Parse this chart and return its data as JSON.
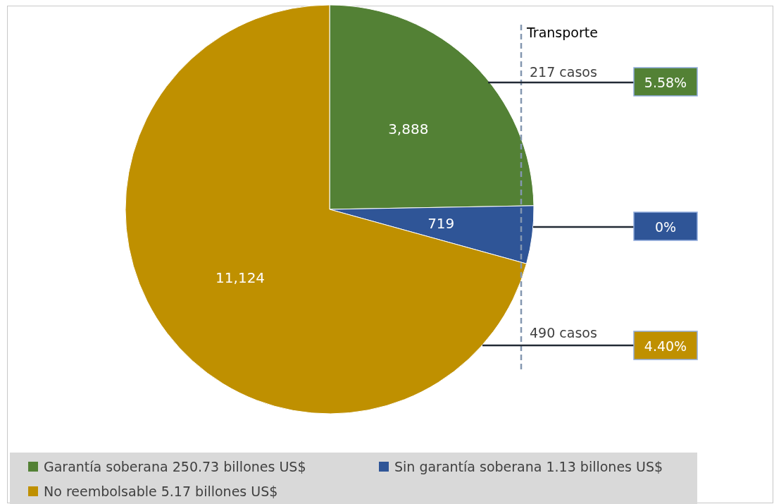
{
  "chart_data": {
    "type": "pie",
    "categories": [
      "Garantía soberana 250.73 billones US$",
      "Sin garantía soberana 1.13 billones US$",
      "No reembolsable 5.17 billones US$"
    ],
    "values": [
      3888,
      719,
      11124
    ],
    "colors": [
      "#538135",
      "#2f5597",
      "#bf9000"
    ],
    "value_labels": [
      "3,888",
      "719",
      "11,124"
    ],
    "legend": "bottom",
    "annotations": [
      "Transporte",
      "217 casos",
      "5.58%",
      "0%",
      "490 casos",
      "4.40%"
    ]
  }
}
